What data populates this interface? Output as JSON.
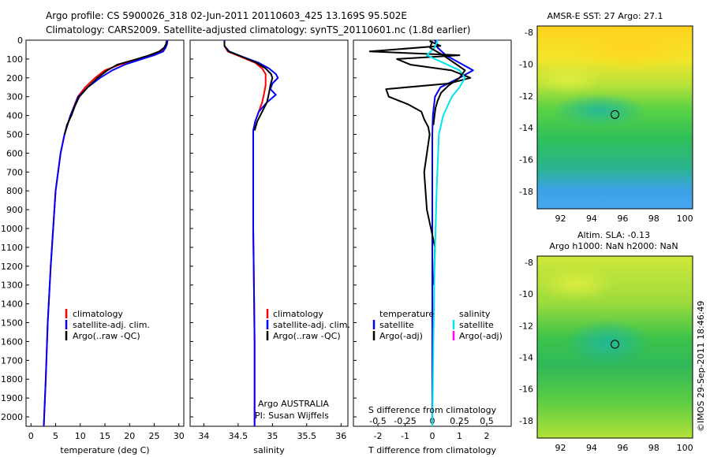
{
  "header": {
    "line1": "Argo profile: CS 5900026_318 02-Jun-2011 20110603_425 13.169S 95.502E",
    "line2": "Climatology: CARS2009. Satellite-adjusted climatology: synTS_20110601.nc (1.8d earlier)"
  },
  "side_stamp": "©IMOS 29-Sep-2011 18:46:49",
  "colors": {
    "climatology": "#ff0000",
    "satellite": "#0000ff",
    "argo": "#000000",
    "satellite_salinity": "#00e5ee",
    "argo_adj_salinity": "#ff00ff"
  },
  "chart_data": [
    {
      "type": "line",
      "xlabel": "temperature (deg C)",
      "ylim": [
        2050,
        0
      ],
      "xlim": [
        -1,
        31
      ],
      "xticks": [
        "0",
        "5",
        "10",
        "15",
        "20",
        "25",
        "30"
      ],
      "yticks": [
        "0",
        "100",
        "200",
        "300",
        "400",
        "500",
        "600",
        "700",
        "800",
        "900",
        "1000",
        "1100",
        "1200",
        "1300",
        "1400",
        "1500",
        "1600",
        "1700",
        "1800",
        "1900",
        "2000"
      ],
      "legend": [
        "climatology",
        "satellite-adj. clim.",
        "Argo(..raw -QC)"
      ],
      "series": [
        {
          "name": "climatology",
          "color": "#ff0000",
          "depth": [
            0,
            20,
            40,
            60,
            80,
            100,
            130,
            160,
            200,
            250,
            300,
            400,
            500,
            600,
            800,
            1000,
            1200,
            1500,
            1800,
            2050
          ],
          "values": [
            27.6,
            27.5,
            27.2,
            26.5,
            24.5,
            22,
            18,
            15,
            13,
            11,
            9.5,
            8,
            6.8,
            6,
            5,
            4.5,
            4,
            3.4,
            3,
            2.6
          ]
        },
        {
          "name": "satellite-adj. clim.",
          "color": "#0000ff",
          "depth": [
            0,
            20,
            40,
            60,
            80,
            100,
            130,
            160,
            200,
            250,
            300,
            400,
            500,
            600,
            800,
            1000,
            1200,
            1500,
            1800,
            2050
          ],
          "values": [
            27.7,
            27.6,
            27.3,
            26.8,
            25,
            22.5,
            19,
            16.5,
            14,
            11.5,
            9.6,
            8,
            6.8,
            6,
            5,
            4.5,
            4,
            3.4,
            3,
            2.6
          ]
        },
        {
          "name": "Argo(..raw -QC)",
          "color": "#000000",
          "depth": [
            5,
            20,
            40,
            60,
            80,
            100,
            130,
            160,
            200,
            250,
            300,
            350,
            400,
            450,
            500
          ],
          "values": [
            27.5,
            27.4,
            27,
            26,
            24,
            21.5,
            17.5,
            15.5,
            13.5,
            11.5,
            9.8,
            8.9,
            8.2,
            7.3,
            6.8
          ]
        }
      ]
    },
    {
      "type": "line",
      "xlabel": "salinity",
      "ylim": [
        2050,
        0
      ],
      "xlim": [
        33.8,
        36.1
      ],
      "xticks": [
        "34",
        "34.5",
        "35",
        "35.5",
        "36"
      ],
      "legend": [
        "climatology",
        "satellite-adj. clim.",
        "Argo(..raw -QC)"
      ],
      "annotation": [
        "Argo AUSTRALIA",
        "PI: Susan Wijffels"
      ],
      "series": [
        {
          "name": "climatology",
          "color": "#ff0000",
          "depth": [
            0,
            30,
            60,
            90,
            120,
            150,
            180,
            200,
            240,
            280,
            330,
            380,
            430,
            480,
            600,
            800,
            1000,
            1300,
            1600,
            1900,
            2050
          ],
          "values": [
            34.3,
            34.3,
            34.35,
            34.55,
            34.75,
            34.85,
            34.9,
            34.9,
            34.9,
            34.88,
            34.85,
            34.8,
            34.75,
            34.72,
            34.72,
            34.72,
            34.72,
            34.73,
            34.74,
            34.74,
            34.74
          ]
        },
        {
          "name": "satellite-adj. clim.",
          "color": "#0000ff",
          "depth": [
            0,
            30,
            60,
            90,
            120,
            150,
            180,
            200,
            230,
            260,
            290,
            330,
            380,
            430,
            480,
            600,
            800,
            1000,
            1300,
            1600,
            1900,
            2050
          ],
          "values": [
            34.3,
            34.3,
            34.37,
            34.58,
            34.8,
            34.95,
            35.05,
            35.08,
            35.0,
            34.97,
            35.05,
            34.92,
            34.8,
            34.75,
            34.72,
            34.72,
            34.72,
            34.72,
            34.73,
            34.74,
            34.74,
            34.74
          ]
        },
        {
          "name": "Argo(..raw -QC)",
          "color": "#000000",
          "depth": [
            5,
            30,
            60,
            90,
            120,
            150,
            180,
            200,
            240,
            280,
            330,
            380,
            430,
            480
          ],
          "values": [
            34.3,
            34.3,
            34.36,
            34.57,
            34.77,
            34.9,
            34.98,
            35.0,
            34.97,
            34.95,
            34.92,
            34.85,
            34.78,
            34.74
          ]
        }
      ]
    },
    {
      "type": "line",
      "xlabel": "T difference from climatology",
      "x2label": "S difference from climatology",
      "ylim": [
        2050,
        0
      ],
      "xlim": [
        -2.9,
        2.9
      ],
      "xticks": [
        "-2",
        "-1",
        "0",
        "1",
        "2"
      ],
      "x2ticks": [
        "-0.5",
        "-0.25",
        "0",
        "0.25",
        "0.5"
      ],
      "legend_temperature": [
        "temperature",
        "satellite",
        "Argo(-adj)"
      ],
      "legend_salinity": [
        "salinity",
        "satellite",
        "Argo(-adj)"
      ],
      "series": [
        {
          "name": "temperature satellite",
          "color": "#0000ff",
          "depth": [
            0,
            40,
            80,
            120,
            160,
            200,
            250,
            300,
            400,
            500,
            700,
            1000,
            1400,
            1800,
            2050
          ],
          "values": [
            0.1,
            0.2,
            0.5,
            1.0,
            1.5,
            1.0,
            0.3,
            0.1,
            0.02,
            0,
            0,
            0,
            0,
            0,
            0
          ]
        },
        {
          "name": "temperature Argo(-adj)",
          "color": "#000000",
          "depth": [
            5,
            30,
            60,
            80,
            100,
            130,
            160,
            200,
            230,
            260,
            300,
            340,
            380,
            420,
            460,
            500,
            700,
            900,
            1100,
            1300
          ],
          "values": [
            -0.1,
            0.3,
            -2.3,
            1.0,
            -1.3,
            -0.8,
            0.7,
            1.4,
            0.6,
            -1.7,
            -1.6,
            -0.9,
            -0.4,
            -0.3,
            -0.15,
            -0.1,
            -0.3,
            -0.2,
            0.1,
            0.05
          ]
        },
        {
          "name": "salinity satellite",
          "color": "#00e5ee",
          "depth": [
            0,
            40,
            80,
            120,
            160,
            200,
            250,
            300,
            400,
            500,
            800,
            1200,
            1600,
            2050
          ],
          "values": [
            0.05,
            0.02,
            -0.05,
            0.1,
            0.25,
            0.3,
            0.25,
            0.18,
            0.1,
            0.06,
            0.04,
            0.02,
            0.01,
            0
          ]
        },
        {
          "name": "salinity Argo(-adj)",
          "color": "#000000",
          "depth": [
            5,
            40,
            80,
            120,
            160,
            200,
            240,
            280,
            320,
            360,
            400,
            450
          ],
          "values": [
            0,
            -0.02,
            0.1,
            0.2,
            0.3,
            0.25,
            0.15,
            0.08,
            0.05,
            0.03,
            0.02,
            0.01
          ]
        }
      ]
    },
    {
      "type": "heatmap",
      "title": "AMSR-E SST: 27 Argo: 27.1",
      "xticks": [
        "92",
        "94",
        "96",
        "98",
        "100"
      ],
      "yticks": [
        "-8",
        "-10",
        "-12",
        "-14",
        "-16",
        "-18"
      ],
      "xlim": [
        90.5,
        100.5
      ],
      "ylim": [
        -19.1,
        -7.6
      ],
      "marker": {
        "lon": 95.5,
        "lat": -13.17
      }
    },
    {
      "type": "heatmap",
      "title": "Altim. SLA: -0.13",
      "subtitle": "Argo h1000: NaN h2000: NaN",
      "xticks": [
        "92",
        "94",
        "96",
        "98",
        "100"
      ],
      "yticks": [
        "-8",
        "-10",
        "-12",
        "-14",
        "-16",
        "-18"
      ],
      "xlim": [
        90.5,
        100.5
      ],
      "ylim": [
        -19.1,
        -7.6
      ],
      "marker": {
        "lon": 95.5,
        "lat": -13.17
      }
    }
  ]
}
